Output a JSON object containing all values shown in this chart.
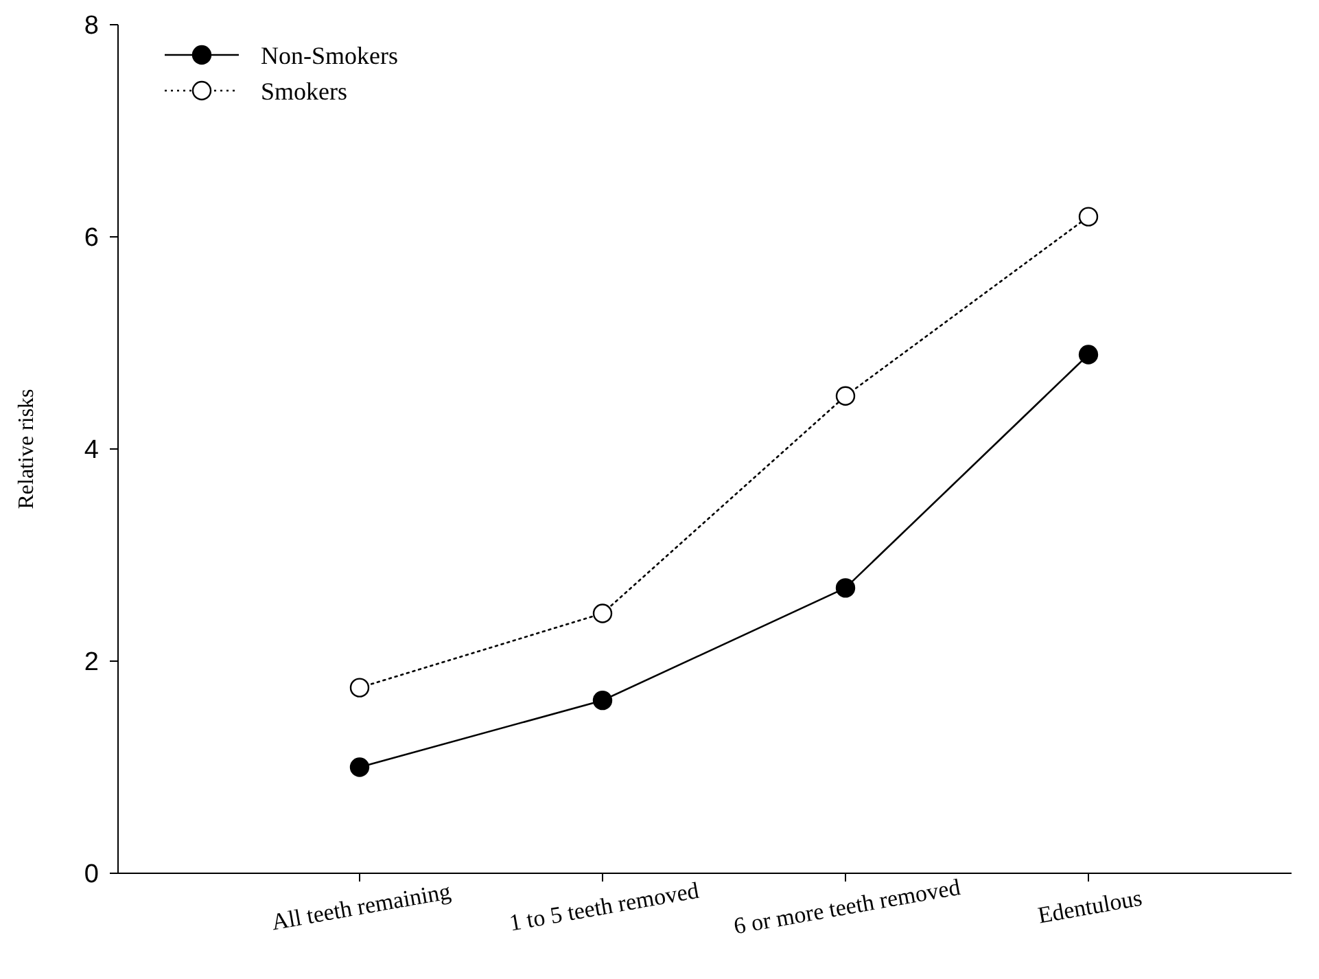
{
  "chart_data": {
    "type": "line",
    "ylabel": "Relative risks",
    "categories": [
      "All teeth remaining",
      "1 to 5 teeth removed",
      "6 or more teeth removed",
      "Edentulous"
    ],
    "series": [
      {
        "name": "Non-Smokers",
        "color": "#000000",
        "values": [
          1.0,
          1.63,
          2.69,
          4.89
        ],
        "marker": "circle",
        "line_style": "solid"
      },
      {
        "name": "Smokers",
        "color": "#000000",
        "values": [
          1.75,
          2.45,
          4.5,
          6.19
        ],
        "marker": "circle",
        "line_style": "dotted"
      }
    ],
    "ylim": [
      0,
      8
    ],
    "yticks": [
      0,
      2,
      4,
      6,
      8
    ],
    "legend": "top left",
    "grid": false
  }
}
